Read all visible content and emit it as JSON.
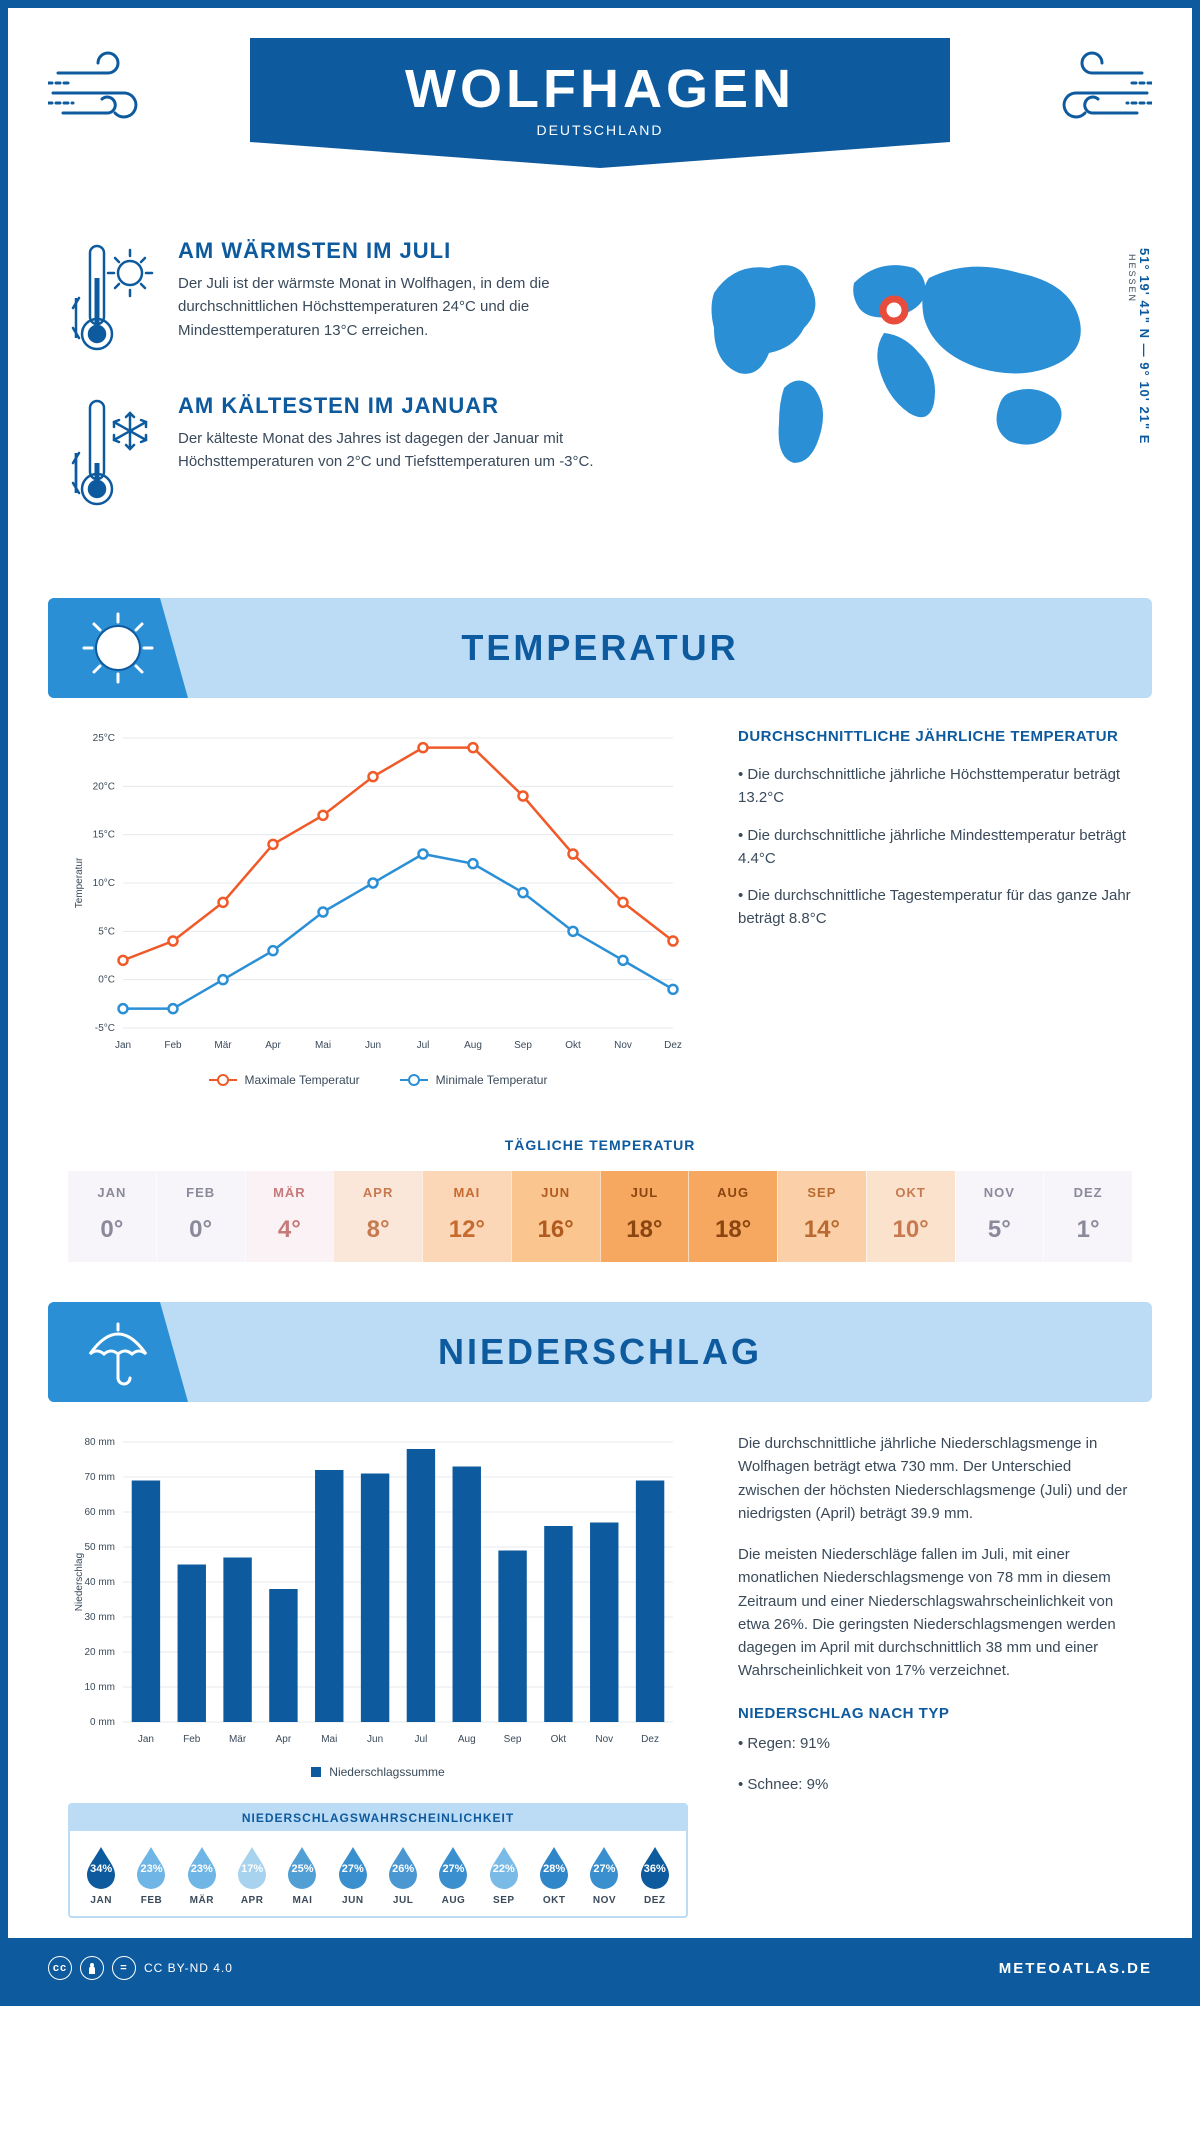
{
  "header": {
    "title": "WOLFHAGEN",
    "country": "DEUTSCHLAND",
    "coords": "51° 19' 41\" N — 9° 10' 21\" E",
    "region": "HESSEN"
  },
  "intro": {
    "warm": {
      "title": "AM WÄRMSTEN IM JULI",
      "text": "Der Juli ist der wärmste Monat in Wolfhagen, in dem die durchschnittlichen Höchsttemperaturen 24°C und die Mindesttemperaturen 13°C erreichen."
    },
    "cold": {
      "title": "AM KÄLTESTEN IM JANUAR",
      "text": "Der kälteste Monat des Jahres ist dagegen der Januar mit Höchsttemperaturen von 2°C und Tiefsttemperaturen um -3°C."
    }
  },
  "colors": {
    "primary": "#0d5a9e",
    "accent_light": "#bcdcf5",
    "accent_mid": "#2b8fd6",
    "text": "#3a4a5a",
    "line_max": "#f05a28",
    "line_min": "#2b8fd6",
    "bar": "#0d5a9e",
    "grid": "#e4e8ec",
    "marker": "#e84c3d"
  },
  "temp_banner": "TEMPERATUR",
  "temp_chart": {
    "months": [
      "Jan",
      "Feb",
      "Mär",
      "Apr",
      "Mai",
      "Jun",
      "Jul",
      "Aug",
      "Sep",
      "Okt",
      "Nov",
      "Dez"
    ],
    "max": [
      2,
      4,
      8,
      14,
      17,
      21,
      24,
      24,
      19,
      13,
      8,
      4
    ],
    "min": [
      -3,
      -3,
      0,
      3,
      7,
      10,
      13,
      12,
      9,
      5,
      2,
      -1
    ],
    "ylim": [
      -5,
      25
    ],
    "ytick_step": 5,
    "y_title": "Temperatur",
    "legend_max": "Maximale Temperatur",
    "legend_min": "Minimale Temperatur"
  },
  "temp_info": {
    "title": "DURCHSCHNITTLICHE JÄHRLICHE TEMPERATUR",
    "b1": "• Die durchschnittliche jährliche Höchsttemperatur beträgt 13.2°C",
    "b2": "• Die durchschnittliche jährliche Mindesttemperatur beträgt 4.4°C",
    "b3": "• Die durchschnittliche Tagestemperatur für das ganze Jahr beträgt 8.8°C"
  },
  "daily": {
    "title": "TÄGLICHE TEMPERATUR",
    "months": [
      "JAN",
      "FEB",
      "MÄR",
      "APR",
      "MAI",
      "JUN",
      "JUL",
      "AUG",
      "SEP",
      "OKT",
      "NOV",
      "DEZ"
    ],
    "values": [
      "0°",
      "0°",
      "4°",
      "8°",
      "12°",
      "16°",
      "18°",
      "18°",
      "14°",
      "10°",
      "5°",
      "1°"
    ],
    "bg": [
      "#f7f5fa",
      "#f7f5fa",
      "#faf2f4",
      "#fbe7da",
      "#fbd7b8",
      "#fbc590",
      "#f6a860",
      "#f6a860",
      "#fbd0a8",
      "#fbe2cc",
      "#f7f5fa",
      "#f7f5fa"
    ],
    "fg": [
      "#8a8a9a",
      "#8a8a9a",
      "#c77a7a",
      "#c77a50",
      "#c76a30",
      "#b05a20",
      "#8a4510",
      "#8a4510",
      "#b86a30",
      "#c77a50",
      "#8a8a9a",
      "#8a8a9a"
    ]
  },
  "precip_banner": "NIEDERSCHLAG",
  "precip_chart": {
    "months": [
      "Jan",
      "Feb",
      "Mär",
      "Apr",
      "Mai",
      "Jun",
      "Jul",
      "Aug",
      "Sep",
      "Okt",
      "Nov",
      "Dez"
    ],
    "values": [
      69,
      45,
      47,
      38,
      72,
      71,
      78,
      73,
      49,
      56,
      57,
      69
    ],
    "ylim": [
      0,
      80
    ],
    "ytick_step": 10,
    "y_title": "Niederschlag",
    "legend": "Niederschlagssumme"
  },
  "precip_info": {
    "p1": "Die durchschnittliche jährliche Niederschlagsmenge in Wolfhagen beträgt etwa 730 mm. Der Unterschied zwischen der höchsten Niederschlagsmenge (Juli) und der niedrigsten (April) beträgt 39.9 mm.",
    "p2": "Die meisten Niederschläge fallen im Juli, mit einer monatlichen Niederschlagsmenge von 78 mm in diesem Zeitraum und einer Niederschlagswahrscheinlichkeit von etwa 26%. Die geringsten Niederschlagsmengen werden dagegen im April mit durchschnittlich 38 mm und einer Wahrscheinlichkeit von 17% verzeichnet.",
    "type_title": "NIEDERSCHLAG NACH TYP",
    "t1": "• Regen: 91%",
    "t2": "• Schnee: 9%"
  },
  "prob": {
    "title": "NIEDERSCHLAGSWAHRSCHEINLICHKEIT",
    "months": [
      "JAN",
      "FEB",
      "MÄR",
      "APR",
      "MAI",
      "JUN",
      "JUL",
      "AUG",
      "SEP",
      "OKT",
      "NOV",
      "DEZ"
    ],
    "values": [
      "34%",
      "23%",
      "23%",
      "17%",
      "25%",
      "27%",
      "26%",
      "27%",
      "22%",
      "28%",
      "27%",
      "36%"
    ],
    "colors": [
      "#0d5a9e",
      "#6fb5e5",
      "#6fb5e5",
      "#a8d3ef",
      "#529fd6",
      "#3a8fce",
      "#4a97d2",
      "#3a8fce",
      "#7abae7",
      "#2f86c8",
      "#3a8fce",
      "#0d5a9e"
    ]
  },
  "footer": {
    "license": "CC BY-ND 4.0",
    "site": "METEOATLAS.DE"
  }
}
